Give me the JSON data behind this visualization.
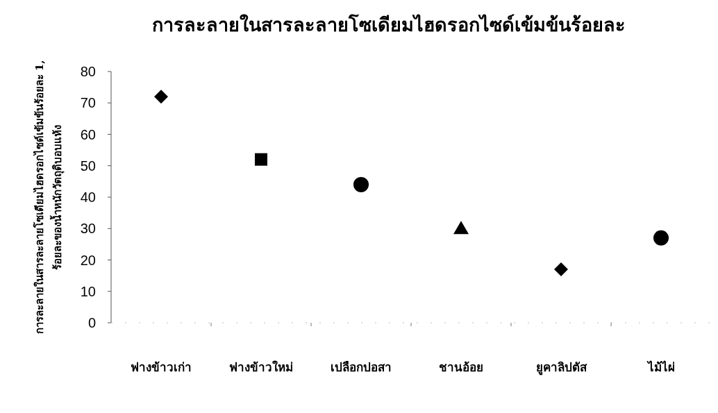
{
  "chart_data": {
    "type": "scatter",
    "title": "การละลายในสารละลายโซเดียมไฮดรอกไซด์เข้มข้นร้อยละ",
    "ylabel": "การละลายในสารละลายโซเดียมไฮดรอกไซด์เข้มข้นร้อยละ 1, ร้อยละของน้ำหนักวัตถุดิบอบแห้ง",
    "categories": [
      "ฟางข้าวเก่า",
      "ฟางข้าวใหม่",
      "เปลือกปอสา",
      "ชานอ้อย",
      "ยูคาลิปตัส",
      "ไม้ไผ่"
    ],
    "ylim": [
      0,
      80
    ],
    "yticks": [
      0,
      10,
      20,
      30,
      40,
      50,
      60,
      70,
      80
    ],
    "grid": false,
    "series": [
      {
        "color": "#000000",
        "marker": "diamond",
        "values": [
          72,
          null,
          null,
          null,
          17,
          null
        ]
      },
      {
        "color": "#000000",
        "marker": "square",
        "values": [
          null,
          52,
          null,
          null,
          null,
          null
        ]
      },
      {
        "color": "#000000",
        "marker": "circle",
        "values": [
          null,
          null,
          44,
          null,
          null,
          27
        ]
      },
      {
        "color": "#000000",
        "marker": "triangle",
        "values": [
          null,
          null,
          null,
          30,
          null,
          null
        ]
      }
    ]
  }
}
